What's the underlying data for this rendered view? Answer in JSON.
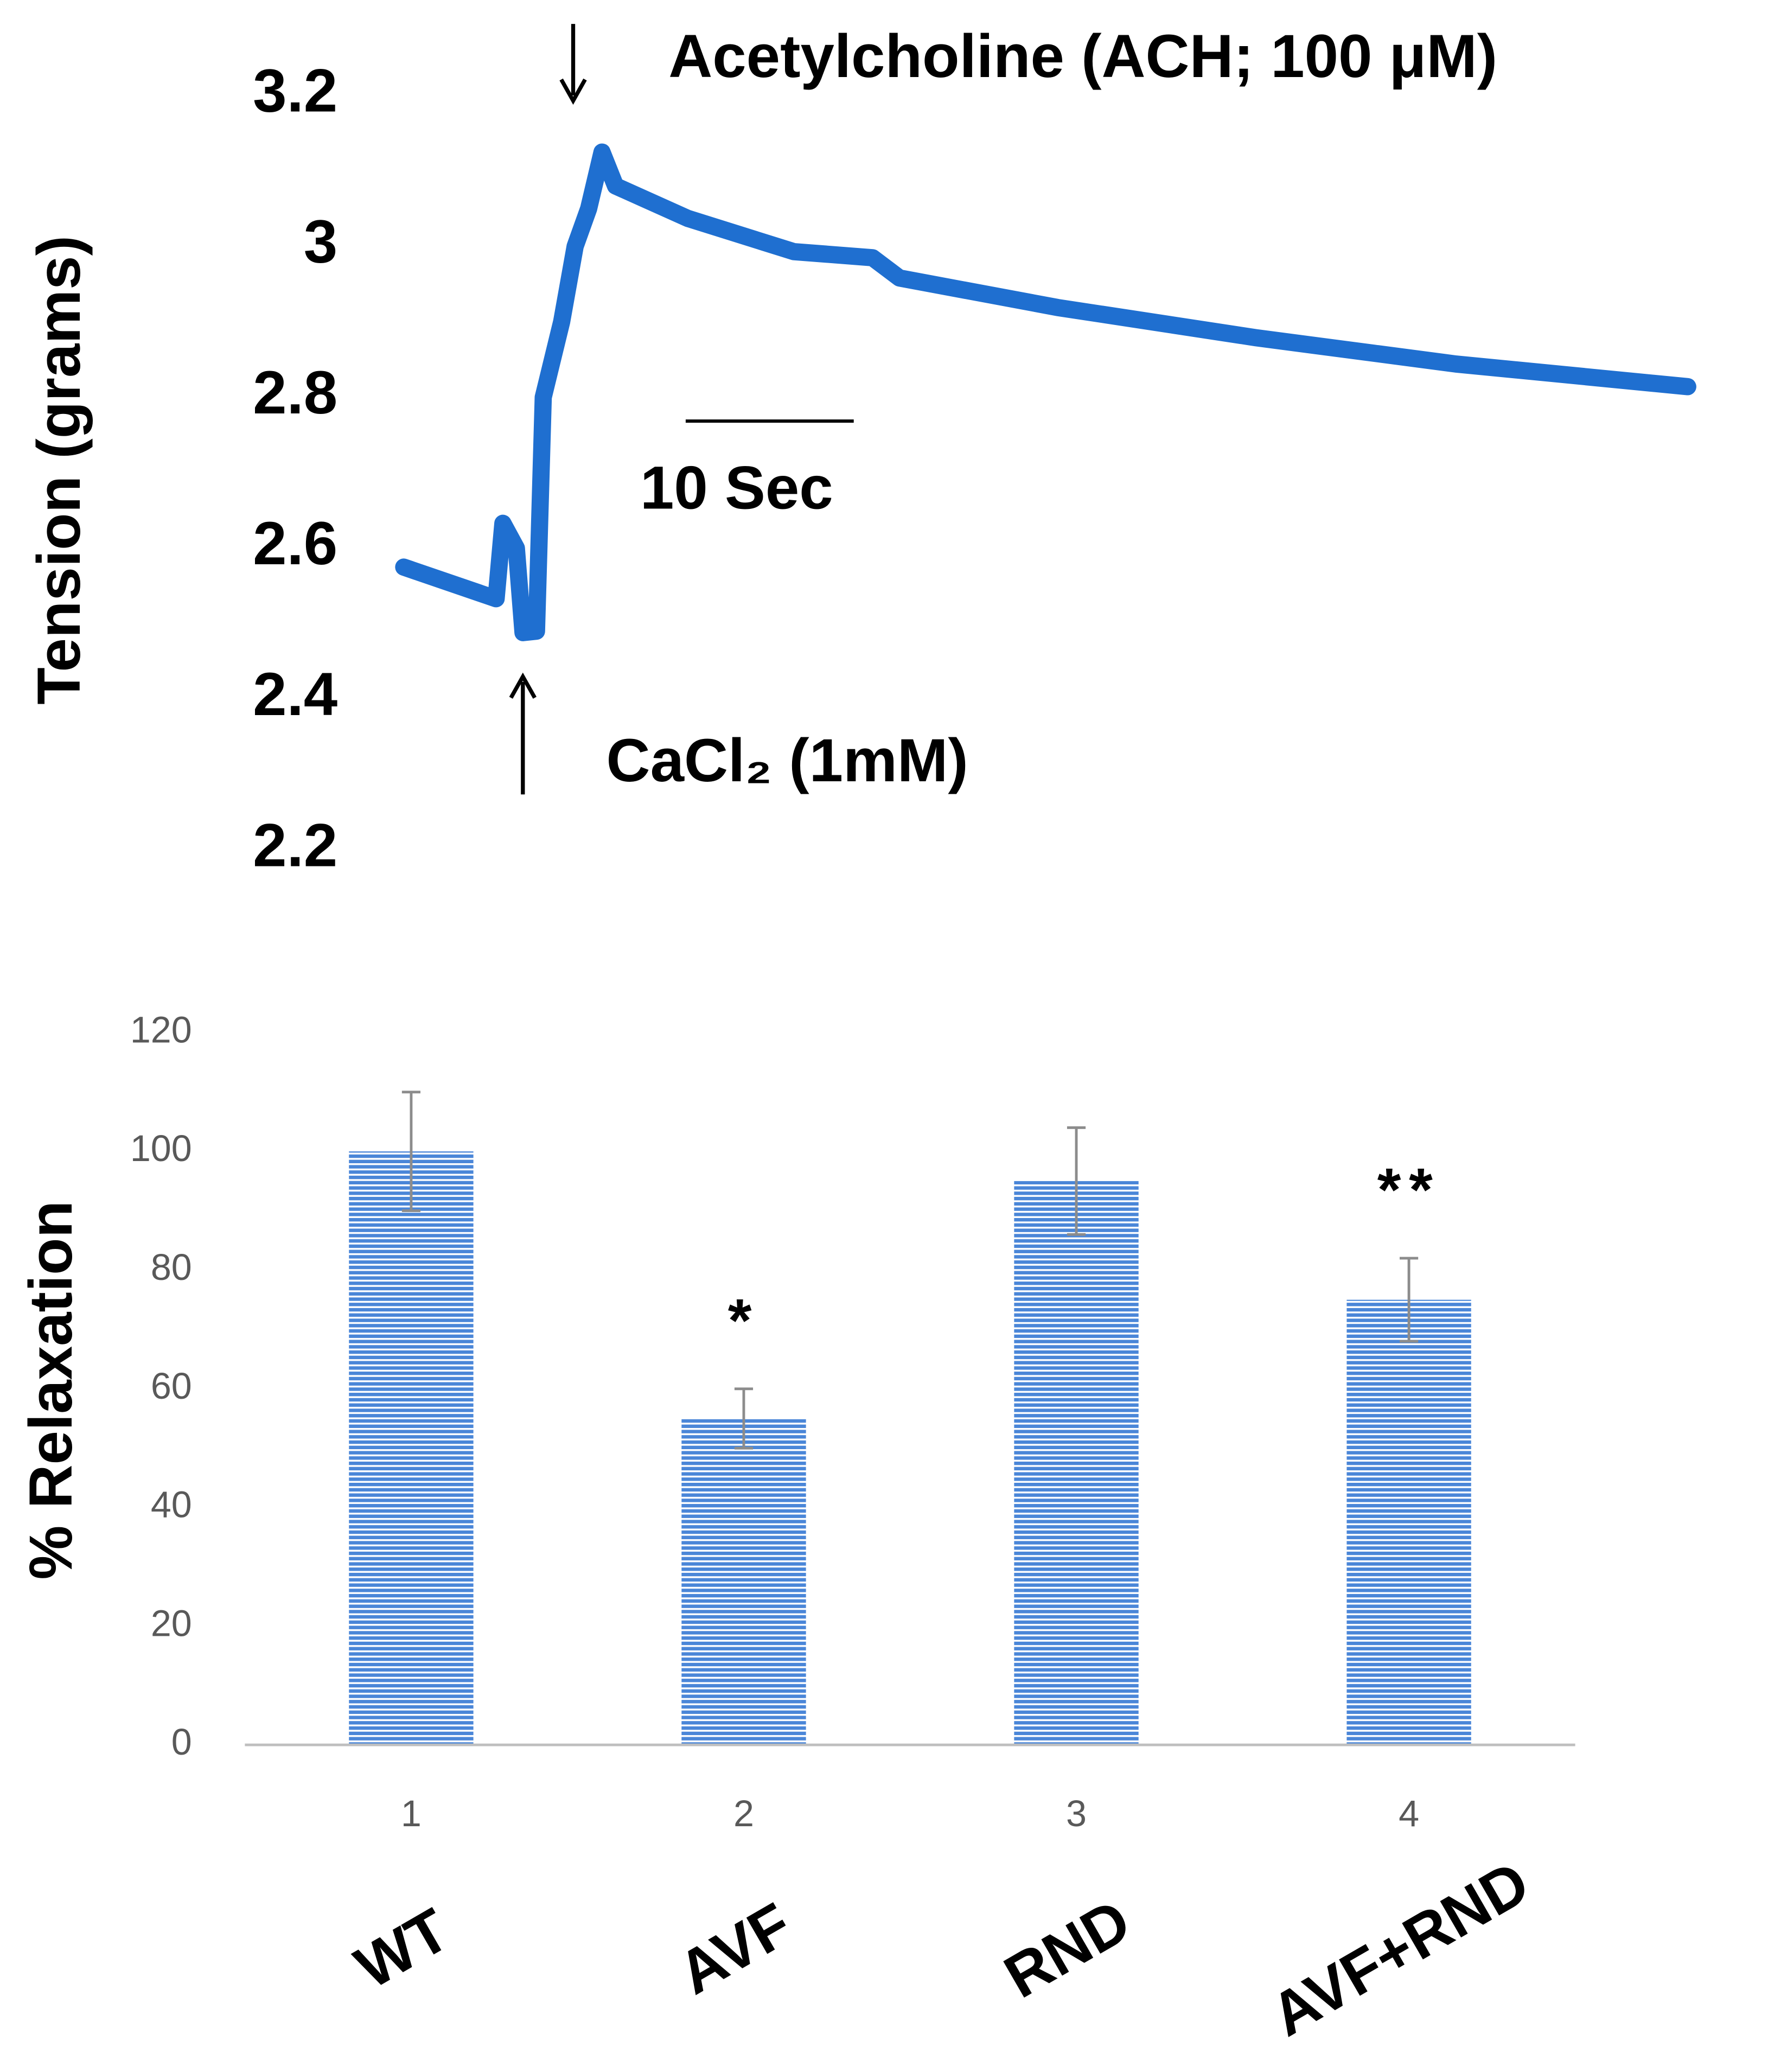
{
  "chart_data": [
    {
      "type": "line",
      "y_label": "Tension (grams)",
      "x": [
        0,
        5.5,
        5.9,
        6.7,
        7.1,
        7.9,
        8.3,
        9.4,
        10.2,
        11.0,
        11.8,
        12.6,
        16.9,
        23.2,
        27.9,
        29.5,
        38.9,
        50.7,
        62.6,
        76.4
      ],
      "series": [
        {
          "color": "#1f6fd0",
          "values": [
            2.575,
            2.533,
            2.633,
            2.6,
            2.488,
            2.49,
            2.8,
            2.9,
            3.0,
            3.05,
            3.125,
            3.08,
            3.037,
            2.993,
            2.985,
            2.958,
            2.919,
            2.879,
            2.844,
            2.814
          ]
        }
      ],
      "xlim": [
        0,
        76.4
      ],
      "ylim": [
        2.2,
        3.2
      ],
      "yticks": [
        2.2,
        2.4,
        2.6,
        2.8,
        3,
        3.2
      ],
      "annotations": [
        "Acetylcholine (ACH; 100 μM)",
        "CaCl₂ (1mM)"
      ],
      "scale_bar": {
        "label": "10 Sec",
        "length": 10
      }
    },
    {
      "type": "bar",
      "y_label": "% Relaxation",
      "categories": [
        "1",
        "2",
        "3",
        "4"
      ],
      "group_labels": [
        "WT",
        "AVF",
        "RND",
        "AVF+RND"
      ],
      "values": [
        100,
        55,
        95,
        75
      ],
      "errors": [
        10,
        5,
        9,
        7
      ],
      "significance": [
        null,
        "*",
        null,
        "**"
      ],
      "color": "#4a86d8",
      "ylim": [
        0,
        120
      ],
      "yticks": [
        0,
        20,
        40,
        60,
        80,
        100,
        120
      ]
    }
  ]
}
